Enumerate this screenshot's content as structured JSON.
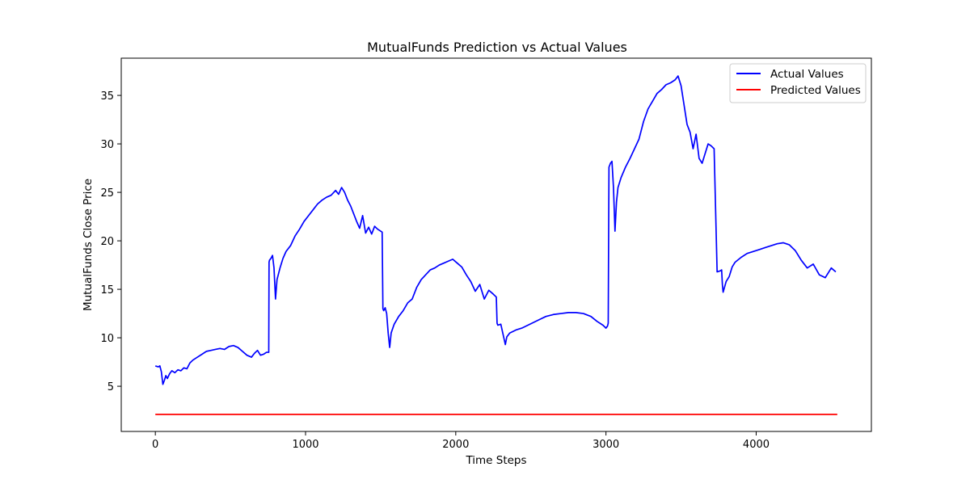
{
  "chart_data": {
    "type": "line",
    "title": "MutualFunds Prediction vs Actual Values",
    "xlabel": "Time Steps",
    "ylabel": "MutualFunds Close Price",
    "xlim": [
      -227,
      4767
    ],
    "ylim": [
      0.34,
      38.84
    ],
    "xticks": [
      "0",
      "1000",
      "2000",
      "3000",
      "4000"
    ],
    "xtick_values": [
      0,
      1000,
      2000,
      3000,
      4000
    ],
    "yticks": [
      "5",
      "10",
      "15",
      "20",
      "25",
      "30",
      "35"
    ],
    "ytick_values": [
      5,
      10,
      15,
      20,
      25,
      30,
      35
    ],
    "grid": false,
    "legend_position": "top-right",
    "series": [
      {
        "name": "Actual Values",
        "color": "#0000ff",
        "x": [
          0,
          20,
          30,
          40,
          50,
          60,
          70,
          80,
          95,
          110,
          130,
          150,
          170,
          190,
          210,
          230,
          250,
          280,
          310,
          340,
          370,
          400,
          430,
          460,
          490,
          520,
          550,
          580,
          610,
          640,
          660,
          680,
          700,
          720,
          740,
          755,
          757,
          760,
          770,
          780,
          790,
          800,
          810,
          830,
          850,
          870,
          900,
          930,
          960,
          990,
          1020,
          1050,
          1080,
          1110,
          1140,
          1170,
          1200,
          1220,
          1240,
          1260,
          1280,
          1300,
          1320,
          1340,
          1360,
          1380,
          1400,
          1420,
          1440,
          1460,
          1480,
          1500,
          1510,
          1515,
          1520,
          1530,
          1540,
          1550,
          1560,
          1570,
          1590,
          1620,
          1650,
          1680,
          1710,
          1740,
          1770,
          1800,
          1830,
          1860,
          1890,
          1920,
          1950,
          1980,
          2010,
          2040,
          2070,
          2100,
          2130,
          2160,
          2190,
          2220,
          2250,
          2270,
          2275,
          2280,
          2300,
          2320,
          2330,
          2340,
          2360,
          2400,
          2440,
          2480,
          2520,
          2560,
          2600,
          2650,
          2700,
          2750,
          2800,
          2850,
          2900,
          2940,
          2980,
          3000,
          3010,
          3015,
          3020,
          3030,
          3040,
          3050,
          3060,
          3070,
          3080,
          3100,
          3130,
          3160,
          3190,
          3220,
          3250,
          3280,
          3310,
          3340,
          3370,
          3400,
          3430,
          3460,
          3480,
          3500,
          3520,
          3540,
          3560,
          3580,
          3600,
          3620,
          3640,
          3660,
          3680,
          3700,
          3720,
          3740,
          3760,
          3770,
          3775,
          3780,
          3800,
          3820,
          3830,
          3840,
          3860,
          3900,
          3940,
          3980,
          4020,
          4060,
          4100,
          4140,
          4180,
          4220,
          4260,
          4300,
          4340,
          4380,
          4420,
          4460,
          4500,
          4530
        ],
        "y": [
          7.1,
          7.0,
          7.1,
          6.5,
          5.2,
          5.6,
          6.1,
          5.8,
          6.3,
          6.6,
          6.4,
          6.7,
          6.6,
          6.9,
          6.8,
          7.4,
          7.7,
          8.0,
          8.3,
          8.6,
          8.7,
          8.8,
          8.9,
          8.8,
          9.1,
          9.2,
          9.0,
          8.6,
          8.2,
          8.0,
          8.4,
          8.7,
          8.2,
          8.3,
          8.5,
          8.5,
          17.8,
          18.0,
          18.2,
          18.5,
          17.2,
          14.0,
          16.0,
          17.2,
          18.2,
          18.9,
          19.5,
          20.5,
          21.2,
          22.0,
          22.6,
          23.2,
          23.8,
          24.2,
          24.5,
          24.7,
          25.2,
          24.8,
          25.5,
          25.0,
          24.2,
          23.6,
          22.8,
          22.0,
          21.3,
          22.6,
          20.8,
          21.4,
          20.7,
          21.5,
          21.2,
          21.0,
          20.9,
          13.0,
          12.8,
          13.1,
          12.5,
          10.5,
          9.0,
          10.5,
          11.4,
          12.2,
          12.8,
          13.6,
          14.0,
          15.2,
          16.0,
          16.5,
          17.0,
          17.2,
          17.5,
          17.7,
          17.9,
          18.1,
          17.7,
          17.3,
          16.5,
          15.8,
          14.8,
          15.5,
          14.0,
          14.9,
          14.5,
          14.2,
          11.5,
          11.3,
          11.4,
          10.0,
          9.3,
          10.1,
          10.5,
          10.8,
          11.0,
          11.3,
          11.6,
          11.9,
          12.2,
          12.4,
          12.5,
          12.6,
          12.6,
          12.5,
          12.2,
          11.7,
          11.3,
          11.0,
          11.2,
          11.5,
          27.6,
          28.0,
          28.2,
          25.5,
          21.0,
          24.0,
          25.5,
          26.5,
          27.6,
          28.5,
          29.5,
          30.5,
          32.3,
          33.6,
          34.4,
          35.2,
          35.6,
          36.1,
          36.3,
          36.6,
          37.0,
          36.0,
          34.0,
          32.0,
          31.2,
          29.5,
          31.0,
          28.5,
          28.0,
          29.0,
          30.0,
          29.8,
          29.5,
          16.8,
          16.9,
          17.0,
          15.5,
          14.7,
          15.8,
          16.3,
          16.8,
          17.3,
          17.8,
          18.3,
          18.7,
          18.9,
          19.1,
          19.3,
          19.5,
          19.7,
          19.8,
          19.6,
          19.0,
          18.0,
          17.2,
          17.6,
          16.5,
          16.2,
          17.2,
          16.8
        ]
      },
      {
        "name": "Predicted Values",
        "color": "#ff0000",
        "x": [
          0,
          4540
        ],
        "y": [
          2.1,
          2.1
        ]
      }
    ]
  }
}
